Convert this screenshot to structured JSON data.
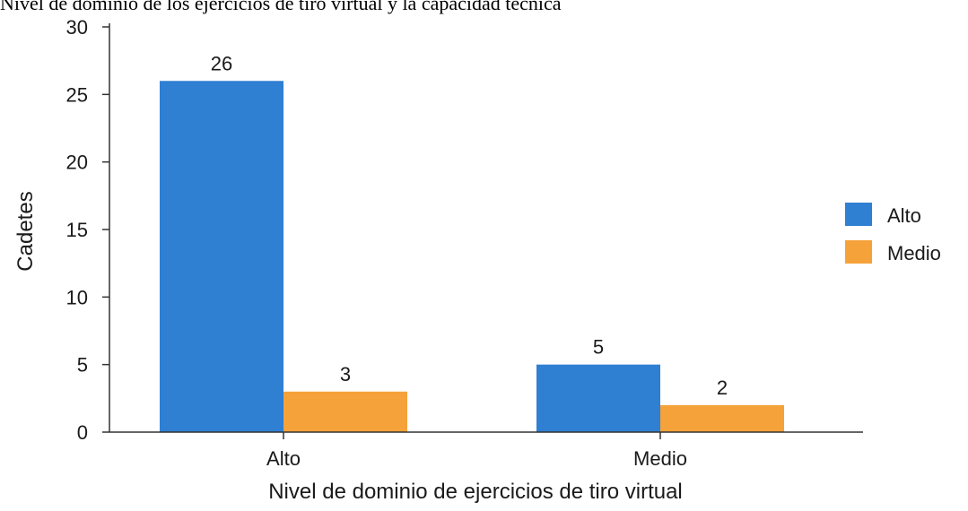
{
  "caption": "Nivel de dominio de los ejercicios de tiro virtual y la capacidad técnica",
  "chart_data": {
    "type": "bar",
    "categories": [
      "Alto",
      "Medio"
    ],
    "series": [
      {
        "name": "Alto",
        "color": "#2f7fd2",
        "values": [
          26,
          5
        ]
      },
      {
        "name": "Medio",
        "color": "#f5a23a",
        "values": [
          3,
          2
        ]
      }
    ],
    "xlabel": "Nivel de dominio de ejercicios de tiro virtual",
    "ylabel": "Cadetes",
    "ylim": [
      0,
      30
    ],
    "yticks": [
      0,
      5,
      10,
      15,
      20,
      25,
      30
    ],
    "grid": false,
    "legend": "right"
  }
}
